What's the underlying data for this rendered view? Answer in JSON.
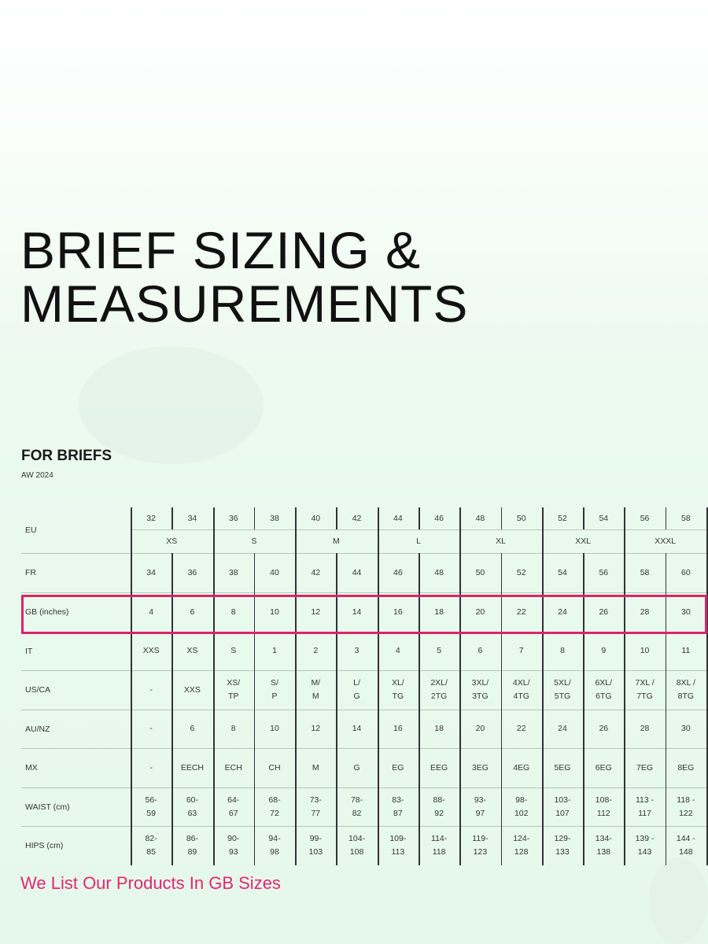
{
  "title_lines": [
    "BRIEF SIZING &",
    "MEASUREMENTS"
  ],
  "section_title": "FOR BRIEFS",
  "season": "AW 2024",
  "highlight_color": "#d9256b",
  "highlighted_row": "GB (inches)",
  "size_chart": {
    "eu_label": "EU",
    "eu_numbers": [
      "32",
      "34",
      "36",
      "38",
      "40",
      "42",
      "44",
      "46",
      "48",
      "50",
      "52",
      "54",
      "56",
      "58"
    ],
    "eu_size_groups": [
      "XS",
      "S",
      "M",
      "L",
      "XL",
      "XXL",
      "XXXL"
    ],
    "rows": [
      {
        "label": "FR",
        "values": [
          "34",
          "36",
          "38",
          "40",
          "42",
          "44",
          "46",
          "48",
          "50",
          "52",
          "54",
          "56",
          "58",
          "60"
        ]
      },
      {
        "label": "GB (inches)",
        "values": [
          "4",
          "6",
          "8",
          "10",
          "12",
          "14",
          "16",
          "18",
          "20",
          "22",
          "24",
          "26",
          "28",
          "30"
        ]
      },
      {
        "label": "IT",
        "values": [
          "XXS",
          "XS",
          "S",
          "1",
          "2",
          "3",
          "4",
          "5",
          "6",
          "7",
          "8",
          "9",
          "10",
          "11"
        ]
      },
      {
        "label": "US/CA",
        "values": [
          "-",
          "XXS",
          "XS/\nTP",
          "S/\nP",
          "M/\nM",
          "L/\nG",
          "XL/\nTG",
          "2XL/\n2TG",
          "3XL/\n3TG",
          "4XL/\n4TG",
          "5XL/\n5TG",
          "6XL/\n6TG",
          "7XL /\n7TG",
          "8XL /\n8TG"
        ]
      },
      {
        "label": "AU/NZ",
        "values": [
          "-",
          "6",
          "8",
          "10",
          "12",
          "14",
          "16",
          "18",
          "20",
          "22",
          "24",
          "26",
          "28",
          "30"
        ]
      },
      {
        "label": "MX",
        "values": [
          "-",
          "EECH",
          "ECH",
          "CH",
          "M",
          "G",
          "EG",
          "EEG",
          "3EG",
          "4EG",
          "5EG",
          "6EG",
          "7EG",
          "8EG"
        ]
      },
      {
        "label": "WAIST (cm)",
        "values": [
          "56-\n59",
          "60-\n63",
          "64-\n67",
          "68-\n72",
          "73-\n77",
          "78-\n82",
          "83-\n87",
          "88-\n92",
          "93-\n97",
          "98-\n102",
          "103-\n107",
          "108-\n112",
          "113 -\n117",
          "118 -\n122"
        ]
      },
      {
        "label": "HIPS (cm)",
        "values": [
          "82-\n85",
          "86-\n89",
          "90-\n93",
          "94-\n98",
          "99-\n103",
          "104-\n108",
          "109-\n113",
          "114-\n118",
          "119-\n123",
          "124-\n128",
          "129-\n133",
          "134-\n138",
          "139 -\n143",
          "144 -\n148"
        ]
      }
    ]
  },
  "note": "We List Our Products In GB Sizes"
}
